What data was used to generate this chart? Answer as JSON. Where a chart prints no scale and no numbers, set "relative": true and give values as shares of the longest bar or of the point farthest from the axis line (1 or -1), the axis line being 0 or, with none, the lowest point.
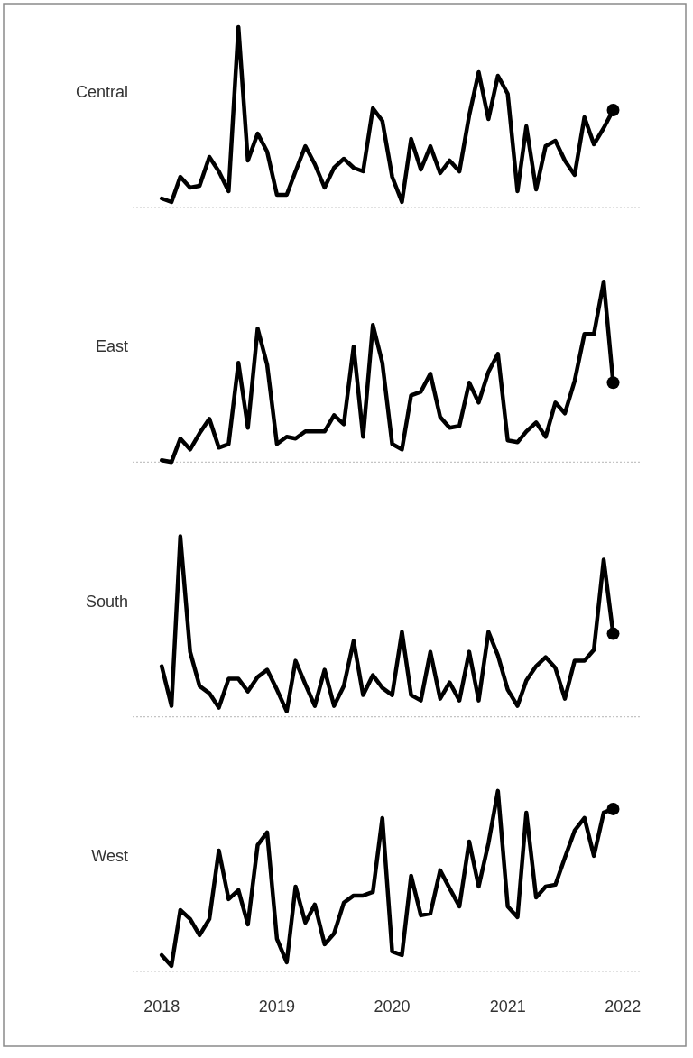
{
  "chart_data": [
    {
      "type": "line",
      "title": "Central",
      "relative": true,
      "tick_labels": false,
      "xlim": [
        "2017-10",
        "2022-03"
      ],
      "x": [
        "2018-01",
        "2018-02",
        "2018-03",
        "2018-04",
        "2018-05",
        "2018-06",
        "2018-07",
        "2018-08",
        "2018-09",
        "2018-10",
        "2018-11",
        "2018-12",
        "2019-01",
        "2019-02",
        "2019-03",
        "2019-04",
        "2019-05",
        "2019-06",
        "2019-07",
        "2019-08",
        "2019-09",
        "2019-10",
        "2019-11",
        "2019-12",
        "2020-01",
        "2020-02",
        "2020-03",
        "2020-04",
        "2020-05",
        "2020-06",
        "2020-07",
        "2020-08",
        "2020-09",
        "2020-10",
        "2020-11",
        "2020-12",
        "2021-01",
        "2021-02",
        "2021-03",
        "2021-04",
        "2021-05",
        "2021-06",
        "2021-07",
        "2021-08",
        "2021-09",
        "2021-10",
        "2021-11",
        "2021-12"
      ],
      "series": [
        {
          "color": "#000000",
          "values": [
            0.05,
            0.03,
            0.17,
            0.11,
            0.12,
            0.28,
            0.2,
            0.09,
            1,
            0.26,
            0.41,
            0.31,
            0.07,
            0.07,
            0.2,
            0.34,
            0.24,
            0.11,
            0.22,
            0.27,
            0.22,
            0.2,
            0.55,
            0.48,
            0.17,
            0.03,
            0.38,
            0.21,
            0.34,
            0.19,
            0.26,
            0.2,
            0.51,
            0.75,
            0.49,
            0.73,
            0.63,
            0.09,
            0.45,
            0.1,
            0.34,
            0.37,
            0.26,
            0.18,
            0.5,
            0.35,
            0.44,
            0.54
          ]
        },
        {
          "type": "scatter",
          "marker": "circle",
          "color": "#000000",
          "x": [
            "2021-12"
          ],
          "values": [
            0.54
          ]
        }
      ]
    },
    {
      "type": "line",
      "title": "East",
      "relative": true,
      "tick_labels": false,
      "xlim": [
        "2017-10",
        "2022-03"
      ],
      "x": [
        "2018-01",
        "2018-02",
        "2018-03",
        "2018-04",
        "2018-05",
        "2018-06",
        "2018-07",
        "2018-08",
        "2018-09",
        "2018-10",
        "2018-11",
        "2018-12",
        "2019-01",
        "2019-02",
        "2019-03",
        "2019-04",
        "2019-05",
        "2019-06",
        "2019-07",
        "2019-08",
        "2019-09",
        "2019-10",
        "2019-11",
        "2019-12",
        "2020-01",
        "2020-02",
        "2020-03",
        "2020-04",
        "2020-05",
        "2020-06",
        "2020-07",
        "2020-08",
        "2020-09",
        "2020-10",
        "2020-11",
        "2020-12",
        "2021-01",
        "2021-02",
        "2021-03",
        "2021-04",
        "2021-05",
        "2021-06",
        "2021-07",
        "2021-08",
        "2021-09",
        "2021-10",
        "2021-11",
        "2021-12"
      ],
      "series": [
        {
          "color": "#000000",
          "values": [
            0.01,
            0,
            0.13,
            0.07,
            0.16,
            0.24,
            0.08,
            0.1,
            0.55,
            0.19,
            0.74,
            0.54,
            0.1,
            0.14,
            0.13,
            0.17,
            0.17,
            0.17,
            0.26,
            0.21,
            0.64,
            0.14,
            0.76,
            0.55,
            0.1,
            0.07,
            0.37,
            0.39,
            0.49,
            0.25,
            0.19,
            0.2,
            0.44,
            0.33,
            0.5,
            0.6,
            0.12,
            0.11,
            0.17,
            0.22,
            0.14,
            0.33,
            0.27,
            0.45,
            0.71,
            0.71,
            1,
            0.44
          ]
        },
        {
          "type": "scatter",
          "marker": "circle",
          "color": "#000000",
          "x": [
            "2021-12"
          ],
          "values": [
            0.44
          ]
        }
      ]
    },
    {
      "type": "line",
      "title": "South",
      "relative": true,
      "tick_labels": false,
      "xlim": [
        "2017-10",
        "2022-03"
      ],
      "x": [
        "2018-01",
        "2018-02",
        "2018-03",
        "2018-04",
        "2018-05",
        "2018-06",
        "2018-07",
        "2018-08",
        "2018-09",
        "2018-10",
        "2018-11",
        "2018-12",
        "2019-01",
        "2019-02",
        "2019-03",
        "2019-04",
        "2019-05",
        "2019-06",
        "2019-07",
        "2019-08",
        "2019-09",
        "2019-10",
        "2019-11",
        "2019-12",
        "2020-01",
        "2020-02",
        "2020-03",
        "2020-04",
        "2020-05",
        "2020-06",
        "2020-07",
        "2020-08",
        "2020-09",
        "2020-10",
        "2020-11",
        "2020-12",
        "2021-01",
        "2021-02",
        "2021-03",
        "2021-04",
        "2021-05",
        "2021-06",
        "2021-07",
        "2021-08",
        "2021-09",
        "2021-10",
        "2021-11",
        "2021-12"
      ],
      "series": [
        {
          "color": "#000000",
          "values": [
            0.28,
            0.06,
            1,
            0.36,
            0.17,
            0.13,
            0.05,
            0.21,
            0.21,
            0.14,
            0.22,
            0.26,
            0.15,
            0.03,
            0.31,
            0.18,
            0.06,
            0.26,
            0.06,
            0.17,
            0.42,
            0.12,
            0.23,
            0.16,
            0.12,
            0.47,
            0.12,
            0.09,
            0.36,
            0.1,
            0.19,
            0.09,
            0.36,
            0.09,
            0.47,
            0.34,
            0.15,
            0.06,
            0.2,
            0.28,
            0.33,
            0.27,
            0.1,
            0.31,
            0.31,
            0.37,
            0.87,
            0.46
          ]
        },
        {
          "type": "scatter",
          "marker": "circle",
          "color": "#000000",
          "x": [
            "2021-12"
          ],
          "values": [
            0.46
          ]
        }
      ]
    },
    {
      "type": "line",
      "title": "West",
      "relative": true,
      "tick_labels": "x",
      "xlim": [
        "2017-10",
        "2022-03"
      ],
      "xticks": [
        "2018",
        "2019",
        "2020",
        "2021",
        "2022"
      ],
      "x": [
        "2018-01",
        "2018-02",
        "2018-03",
        "2018-04",
        "2018-05",
        "2018-06",
        "2018-07",
        "2018-08",
        "2018-09",
        "2018-10",
        "2018-11",
        "2018-12",
        "2019-01",
        "2019-02",
        "2019-03",
        "2019-04",
        "2019-05",
        "2019-06",
        "2019-07",
        "2019-08",
        "2019-09",
        "2019-10",
        "2019-11",
        "2019-12",
        "2020-01",
        "2020-02",
        "2020-03",
        "2020-04",
        "2020-05",
        "2020-06",
        "2020-07",
        "2020-08",
        "2020-09",
        "2020-10",
        "2020-11",
        "2020-12",
        "2021-01",
        "2021-02",
        "2021-03",
        "2021-04",
        "2021-05",
        "2021-06",
        "2021-07",
        "2021-08",
        "2021-09",
        "2021-10",
        "2021-11",
        "2021-12"
      ],
      "series": [
        {
          "color": "#000000",
          "values": [
            0.09,
            0.03,
            0.34,
            0.29,
            0.2,
            0.29,
            0.67,
            0.4,
            0.45,
            0.26,
            0.7,
            0.77,
            0.18,
            0.05,
            0.47,
            0.27,
            0.37,
            0.15,
            0.21,
            0.38,
            0.42,
            0.42,
            0.44,
            0.85,
            0.11,
            0.09,
            0.53,
            0.31,
            0.32,
            0.56,
            0.46,
            0.36,
            0.72,
            0.47,
            0.71,
            1,
            0.36,
            0.3,
            0.88,
            0.41,
            0.47,
            0.48,
            0.63,
            0.78,
            0.85,
            0.64,
            0.88,
            0.9
          ]
        },
        {
          "type": "scatter",
          "marker": "circle",
          "color": "#000000",
          "x": [
            "2021-12"
          ],
          "values": [
            0.9
          ]
        }
      ]
    }
  ]
}
